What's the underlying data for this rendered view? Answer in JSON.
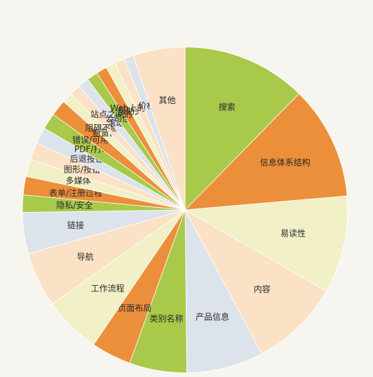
{
  "chart_data": {
    "type": "pie",
    "title": "",
    "slices": [
      {
        "label": "搜索",
        "value": 11.5,
        "color": "#a9c94a"
      },
      {
        "label": "信息体系结构",
        "value": 10.5,
        "color": "#ec8f3b"
      },
      {
        "label": "易读性",
        "value": 9.0,
        "color": "#f1f0c6"
      },
      {
        "label": "内容",
        "value": 8.3,
        "color": "#fbe1c5"
      },
      {
        "label": "产品信息",
        "value": 7.1,
        "color": "#dde3ea"
      },
      {
        "label": "类别名称",
        "value": 5.3,
        "color": "#a9c94a"
      },
      {
        "label": "页面布局",
        "value": 3.7,
        "color": "#ec8f3b"
      },
      {
        "label": "工作流程",
        "value": 5.3,
        "color": "#f1f0c6"
      },
      {
        "label": "导航",
        "value": 5.1,
        "color": "#fbe1c5"
      },
      {
        "label": "链接",
        "value": 3.8,
        "color": "#dde3ea"
      },
      {
        "label": "隐私/安全",
        "value": 1.6,
        "color": "#a9c94a"
      },
      {
        "label": "表单/注册过程",
        "value": 1.7,
        "color": "#ec8f3b"
      },
      {
        "label": "多媒体",
        "value": 1.6,
        "color": "#f1f0c6"
      },
      {
        "label": "图形/按钮",
        "value": 1.6,
        "color": "#fbe1c5"
      },
      {
        "label": "后退按钮",
        "value": 1.5,
        "color": "#dde3ea"
      },
      {
        "label": "PDF/打印",
        "value": 1.5,
        "color": "#a9c94a"
      },
      {
        "label": "错误/可用性能",
        "value": 1.5,
        "color": "#ec8f3b"
      },
      {
        "label": "新窗口",
        "value": 1.0,
        "color": "#f1f0c6"
      },
      {
        "label": "阻碍不够专业",
        "value": 1.0,
        "color": "#fbe1c5"
      },
      {
        "label": "滚动",
        "value": 1.0,
        "color": "#dde3ea"
      },
      {
        "label": "公司信息",
        "value": 1.0,
        "color": "#a9c94a"
      },
      {
        "label": "站点之间的切换问题",
        "value": 1.0,
        "color": "#ec8f3b"
      },
      {
        "label": "帮助文档",
        "value": 0.9,
        "color": "#f1f0c6"
      },
      {
        "label": "Web上的可用性",
        "value": 0.9,
        "color": "#fbe1c5"
      },
      {
        "label": "价格",
        "value": 0.9,
        "color": "#dde3ea"
      },
      {
        "label": "其他",
        "value": 4.8,
        "color": "#fbe1c5"
      }
    ]
  }
}
